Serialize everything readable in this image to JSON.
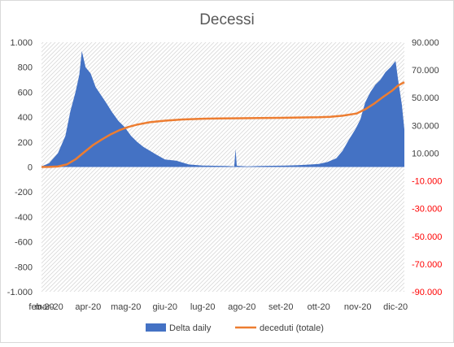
{
  "chart_data": {
    "type": "area",
    "title": "Decessi",
    "x_tick_labels": [
      "feb-20",
      "mar-20",
      "apr-20",
      "mag-20",
      "giu-20",
      "lug-20",
      "ago-20",
      "set-20",
      "ott-20",
      "nov-20",
      "dic-20"
    ],
    "y_left": {
      "ylim": [
        -1000,
        1000
      ],
      "ticks": [
        -1000,
        -800,
        -600,
        -400,
        -200,
        0,
        200,
        400,
        600,
        800,
        1000
      ],
      "tick_labels": [
        "-1.000",
        "-800",
        "-600",
        "-400",
        "-200",
        "0",
        "200",
        "400",
        "600",
        "800",
        "1.000"
      ]
    },
    "y_right": {
      "ylim": [
        -90000,
        90000
      ],
      "ticks": [
        -90000,
        -70000,
        -50000,
        -30000,
        -10000,
        10000,
        30000,
        50000,
        70000,
        90000
      ],
      "tick_labels": [
        "-90.000",
        "-70.000",
        "-50.000",
        "-30.000",
        "-10.000",
        "10.000",
        "30.000",
        "50.000",
        "70.000",
        "90.000"
      ]
    },
    "grid": false,
    "legend_position": "bottom",
    "colors": {
      "delta": "#4472c4",
      "total": "#ed7d31",
      "negative_tick": "#ff0000",
      "hatch": "#d9d9d9"
    },
    "series": [
      {
        "name": "Delta daily",
        "type": "area",
        "axis": "left",
        "x": [
          "2020-02-24",
          "2020-03-01",
          "2020-03-08",
          "2020-03-14",
          "2020-03-18",
          "2020-03-22",
          "2020-03-25",
          "2020-03-27",
          "2020-03-30",
          "2020-04-03",
          "2020-04-07",
          "2020-04-11",
          "2020-04-15",
          "2020-04-20",
          "2020-04-25",
          "2020-04-30",
          "2020-05-05",
          "2020-05-10",
          "2020-05-15",
          "2020-05-20",
          "2020-05-25",
          "2020-06-01",
          "2020-06-10",
          "2020-06-20",
          "2020-07-01",
          "2020-07-10",
          "2020-07-20",
          "2020-07-26",
          "2020-07-27",
          "2020-07-28",
          "2020-08-05",
          "2020-08-15",
          "2020-08-25",
          "2020-09-05",
          "2020-09-15",
          "2020-09-25",
          "2020-10-01",
          "2020-10-08",
          "2020-10-15",
          "2020-10-20",
          "2020-10-25",
          "2020-10-30",
          "2020-11-03",
          "2020-11-07",
          "2020-11-11",
          "2020-11-15",
          "2020-11-19",
          "2020-11-23",
          "2020-11-27",
          "2020-12-01",
          "2020-12-03",
          "2020-12-06",
          "2020-12-08"
        ],
        "values": [
          5,
          30,
          110,
          250,
          450,
          600,
          740,
          930,
          800,
          750,
          640,
          580,
          520,
          440,
          370,
          320,
          250,
          200,
          160,
          130,
          100,
          60,
          50,
          20,
          12,
          10,
          8,
          5,
          145,
          10,
          5,
          8,
          10,
          12,
          15,
          20,
          25,
          40,
          70,
          130,
          220,
          300,
          380,
          520,
          600,
          660,
          700,
          760,
          800,
          850,
          700,
          500,
          300
        ]
      },
      {
        "name": "deceduti (totale)",
        "type": "line",
        "axis": "right",
        "x": [
          "2020-02-24",
          "2020-03-01",
          "2020-03-08",
          "2020-03-15",
          "2020-03-22",
          "2020-03-29",
          "2020-04-05",
          "2020-04-12",
          "2020-04-19",
          "2020-04-26",
          "2020-05-03",
          "2020-05-10",
          "2020-05-20",
          "2020-06-01",
          "2020-06-15",
          "2020-07-01",
          "2020-07-15",
          "2020-08-01",
          "2020-08-15",
          "2020-09-01",
          "2020-09-15",
          "2020-10-01",
          "2020-10-10",
          "2020-10-20",
          "2020-10-31",
          "2020-11-07",
          "2020-11-14",
          "2020-11-21",
          "2020-11-28",
          "2020-12-03",
          "2020-12-08"
        ],
        "values": [
          7,
          35,
          370,
          1800,
          5500,
          10800,
          15900,
          19900,
          23600,
          26600,
          28900,
          30600,
          32300,
          33400,
          34300,
          34800,
          35000,
          35150,
          35300,
          35500,
          35700,
          35900,
          36200,
          37000,
          38600,
          41700,
          45700,
          50500,
          54900,
          58800,
          61200
        ]
      }
    ]
  },
  "legend": {
    "items": [
      "Delta daily",
      "deceduti (totale)"
    ]
  }
}
